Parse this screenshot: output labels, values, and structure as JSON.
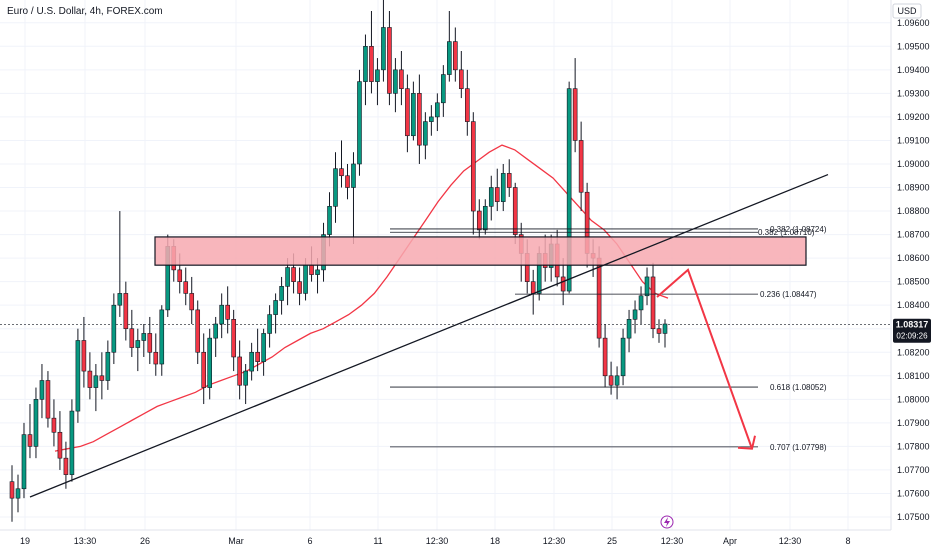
{
  "chart_data": {
    "type": "candlestick",
    "title": "Euro / U.S. Dollar, 4h, FOREX.com",
    "currency": "USD",
    "ylim": [
      1.0744,
      1.0985
    ],
    "y_ticks": [
      "1.09600",
      "1.09500",
      "1.09400",
      "1.09300",
      "1.09200",
      "1.09100",
      "1.09000",
      "1.08900",
      "1.08800",
      "1.08700",
      "1.08600",
      "1.08500",
      "1.08400",
      "1.08300",
      "1.08200",
      "1.08100",
      "1.08000",
      "1.07900",
      "1.07800",
      "1.07700",
      "1.07600",
      "1.07500"
    ],
    "x_ticks": [
      "19",
      "13:30",
      "26",
      "Mar",
      "6",
      "11",
      "12:30",
      "18",
      "12:30",
      "25",
      "12:30",
      "Apr",
      "12:30",
      "8"
    ],
    "current_price": "1.08317",
    "countdown": "02:09:26",
    "colors": {
      "up": "#089981",
      "down": "#f23645",
      "ma": "#f23645",
      "zone": "#f7a9b0",
      "arrow": "#f23645"
    },
    "candles": [
      [
        1.0765,
        1.0772,
        1.0748,
        1.0758
      ],
      [
        1.0758,
        1.0768,
        1.0752,
        1.0762
      ],
      [
        1.0762,
        1.079,
        1.0758,
        1.0785
      ],
      [
        1.0785,
        1.0798,
        1.0775,
        1.078
      ],
      [
        1.078,
        1.0805,
        1.0775,
        1.08
      ],
      [
        1.08,
        1.0815,
        1.0792,
        1.0808
      ],
      [
        1.0808,
        1.0812,
        1.0788,
        1.0792
      ],
      [
        1.0792,
        1.08,
        1.078,
        1.0786
      ],
      [
        1.0786,
        1.0795,
        1.077,
        1.0775
      ],
      [
        1.0775,
        1.0782,
        1.0762,
        1.0768
      ],
      [
        1.0768,
        1.08,
        1.0765,
        1.0795
      ],
      [
        1.0795,
        1.083,
        1.079,
        1.0825
      ],
      [
        1.0825,
        1.0835,
        1.0805,
        1.0812
      ],
      [
        1.0812,
        1.082,
        1.08,
        1.0805
      ],
      [
        1.0805,
        1.0815,
        1.0795,
        1.081
      ],
      [
        1.081,
        1.082,
        1.08,
        1.0808
      ],
      [
        1.0808,
        1.0825,
        1.0804,
        1.082
      ],
      [
        1.082,
        1.0845,
        1.0815,
        1.084
      ],
      [
        1.084,
        1.088,
        1.0835,
        1.0845
      ],
      [
        1.0845,
        1.085,
        1.0825,
        1.083
      ],
      [
        1.083,
        1.0838,
        1.0818,
        1.0822
      ],
      [
        1.0822,
        1.083,
        1.0812,
        1.0825
      ],
      [
        1.0825,
        1.0832,
        1.0818,
        1.0828
      ],
      [
        1.0828,
        1.0835,
        1.0815,
        1.082
      ],
      [
        1.082,
        1.0828,
        1.081,
        1.0815
      ],
      [
        1.0815,
        1.084,
        1.081,
        1.0838
      ],
      [
        1.0838,
        1.087,
        1.0835,
        1.0865
      ],
      [
        1.0865,
        1.0868,
        1.085,
        1.0855
      ],
      [
        1.0855,
        1.0862,
        1.0845,
        1.085
      ],
      [
        1.085,
        1.0856,
        1.084,
        1.0845
      ],
      [
        1.0845,
        1.0852,
        1.0832,
        1.0838
      ],
      [
        1.0838,
        1.0842,
        1.0815,
        1.082
      ],
      [
        1.082,
        1.0828,
        1.0798,
        1.0805
      ],
      [
        1.0805,
        1.083,
        1.08,
        1.0826
      ],
      [
        1.0826,
        1.0835,
        1.0818,
        1.0832
      ],
      [
        1.0832,
        1.0845,
        1.0826,
        1.084
      ],
      [
        1.084,
        1.0848,
        1.0828,
        1.0834
      ],
      [
        1.0834,
        1.0838,
        1.0812,
        1.0818
      ],
      [
        1.0818,
        1.0825,
        1.08,
        1.0806
      ],
      [
        1.0806,
        1.0815,
        1.0798,
        1.0812
      ],
      [
        1.0812,
        1.0824,
        1.0808,
        1.082
      ],
      [
        1.082,
        1.083,
        1.0812,
        1.0816
      ],
      [
        1.0816,
        1.083,
        1.081,
        1.0828
      ],
      [
        1.0828,
        1.084,
        1.0822,
        1.0836
      ],
      [
        1.0836,
        1.0845,
        1.0828,
        1.0842
      ],
      [
        1.0842,
        1.0852,
        1.0836,
        1.0848
      ],
      [
        1.0848,
        1.086,
        1.084,
        1.0856
      ],
      [
        1.0856,
        1.0862,
        1.0845,
        1.085
      ],
      [
        1.085,
        1.0856,
        1.084,
        1.0845
      ],
      [
        1.0845,
        1.086,
        1.0842,
        1.0857
      ],
      [
        1.0857,
        1.0865,
        1.085,
        1.0853
      ],
      [
        1.0853,
        1.086,
        1.0845,
        1.0855
      ],
      [
        1.0855,
        1.0875,
        1.085,
        1.087
      ],
      [
        1.087,
        1.0888,
        1.0865,
        1.0882
      ],
      [
        1.0882,
        1.0905,
        1.0875,
        1.0898
      ],
      [
        1.0898,
        1.091,
        1.089,
        1.0895
      ],
      [
        1.0895,
        1.09,
        1.0885,
        1.089
      ],
      [
        1.089,
        1.0905,
        1.0866,
        1.09
      ],
      [
        1.09,
        1.094,
        1.0895,
        1.0935
      ],
      [
        1.0935,
        1.0955,
        1.0925,
        1.095
      ],
      [
        1.095,
        1.0965,
        1.093,
        1.0935
      ],
      [
        1.0935,
        1.0945,
        1.0925,
        1.094
      ],
      [
        1.094,
        1.0985,
        1.0935,
        1.0958
      ],
      [
        1.0958,
        1.0965,
        1.0925,
        1.093
      ],
      [
        1.093,
        1.0945,
        1.0922,
        1.094
      ],
      [
        1.094,
        1.0948,
        1.0925,
        1.0932
      ],
      [
        1.0932,
        1.0938,
        1.0905,
        1.0912
      ],
      [
        1.0912,
        1.0935,
        1.091,
        1.093
      ],
      [
        1.093,
        1.0938,
        1.09,
        1.0908
      ],
      [
        1.0908,
        1.0922,
        1.0902,
        1.0918
      ],
      [
        1.0918,
        1.0925,
        1.0912,
        1.092
      ],
      [
        1.092,
        1.093,
        1.0914,
        1.0926
      ],
      [
        1.0926,
        1.0942,
        1.092,
        1.0938
      ],
      [
        1.0938,
        1.0965,
        1.0935,
        1.0952
      ],
      [
        1.0952,
        1.0958,
        1.0935,
        1.094
      ],
      [
        1.094,
        1.0948,
        1.0928,
        1.0932
      ],
      [
        1.0932,
        1.094,
        1.0912,
        1.0918
      ],
      [
        1.0918,
        1.0922,
        1.087,
        1.088
      ],
      [
        1.088,
        1.0885,
        1.0868,
        1.0872
      ],
      [
        1.0872,
        1.0885,
        1.087,
        1.0882
      ],
      [
        1.0882,
        1.0895,
        1.0876,
        1.089
      ],
      [
        1.089,
        1.0898,
        1.088,
        1.0884
      ],
      [
        1.0884,
        1.09,
        1.088,
        1.0896
      ],
      [
        1.0896,
        1.0902,
        1.0886,
        1.089
      ],
      [
        1.089,
        1.0892,
        1.0866,
        1.087
      ],
      [
        1.087,
        1.0875,
        1.085,
        1.0862
      ],
      [
        1.0862,
        1.0868,
        1.0845,
        1.085
      ],
      [
        1.085,
        1.0855,
        1.0836,
        1.0845
      ],
      [
        1.0845,
        1.0865,
        1.0842,
        1.0862
      ],
      [
        1.0862,
        1.087,
        1.085,
        1.0856
      ],
      [
        1.0856,
        1.087,
        1.085,
        1.0866
      ],
      [
        1.0866,
        1.0872,
        1.0848,
        1.0852
      ],
      [
        1.0852,
        1.086,
        1.084,
        1.0846
      ],
      [
        1.0846,
        1.0935,
        1.0845,
        1.0932
      ],
      [
        1.0932,
        1.0945,
        1.0905,
        1.091
      ],
      [
        1.091,
        1.0918,
        1.088,
        1.0888
      ],
      [
        1.0888,
        1.0892,
        1.0856,
        1.0862
      ],
      [
        1.0862,
        1.0868,
        1.0852,
        1.086
      ],
      [
        1.086,
        1.0865,
        1.0822,
        1.0826
      ],
      [
        1.0826,
        1.0832,
        1.0805,
        1.081
      ],
      [
        1.081,
        1.0816,
        1.0802,
        1.0806
      ],
      [
        1.0806,
        1.0814,
        1.08,
        1.081
      ],
      [
        1.081,
        1.083,
        1.0806,
        1.0826
      ],
      [
        1.0826,
        1.0838,
        1.082,
        1.0834
      ],
      [
        1.0834,
        1.0842,
        1.0828,
        1.0838
      ],
      [
        1.0838,
        1.0848,
        1.0832,
        1.0844
      ],
      [
        1.0844,
        1.0856,
        1.084,
        1.0852
      ],
      [
        1.0852,
        1.0858,
        1.0826,
        1.083
      ],
      [
        1.083,
        1.0834,
        1.0824,
        1.0828
      ],
      [
        1.0828,
        1.0834,
        1.0822,
        1.0832
      ]
    ],
    "moving_average": [
      1.0778,
      1.0779,
      1.078,
      1.0782,
      1.0785,
      1.0788,
      1.0791,
      1.0794,
      1.0797,
      1.0799,
      1.0801,
      1.0803,
      1.0806,
      1.0808,
      1.081,
      1.0812,
      1.0815,
      1.0818,
      1.0822,
      1.0825,
      1.0828,
      1.083,
      1.0833,
      1.0836,
      1.084,
      1.0845,
      1.0852,
      1.086,
      1.0868,
      1.0876,
      1.0884,
      1.0891,
      1.0897,
      1.0901,
      1.0905,
      1.0908,
      1.0906,
      1.0902,
      1.0898,
      1.0894,
      1.0888,
      1.0882,
      1.0876,
      1.0872,
      1.0866,
      1.0858,
      1.085,
      1.0845,
      1.0843
    ],
    "resistance_zone": {
      "from": 1.0857,
      "to": 1.0869
    },
    "fib_levels": [
      {
        "label": "0.382 (1.08724)",
        "value": 1.08724
      },
      {
        "label": "0.382 (1.08710)",
        "value": 1.0871
      },
      {
        "label": "0.236 (1.08447)",
        "value": 1.08447
      },
      {
        "label": "0.618 (1.08052)",
        "value": 1.08052
      },
      {
        "label": "0.707 (1.07798)",
        "value": 1.07798
      }
    ]
  }
}
